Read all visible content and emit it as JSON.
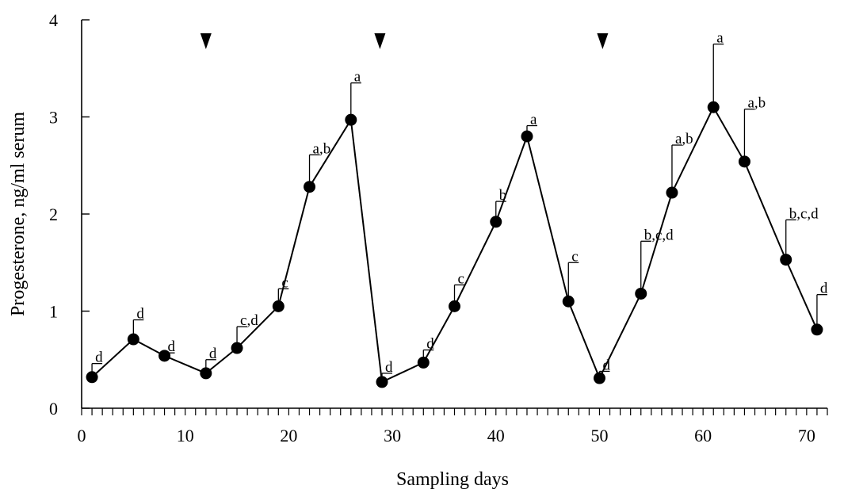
{
  "chart_data": {
    "type": "line",
    "title": "",
    "xlabel": "Sampling days",
    "ylabel": "Progesterone, ng/ml serum",
    "xlim": [
      0,
      72
    ],
    "ylim": [
      0,
      4
    ],
    "x_ticks": [
      0,
      10,
      20,
      30,
      40,
      50,
      60,
      70
    ],
    "y_ticks": [
      0,
      1,
      2,
      3,
      4
    ],
    "x_minor_step": 1,
    "grid": false,
    "legend": "none",
    "marker": "filled-circle",
    "line_color": "#000000",
    "series": [
      {
        "x": [
          1,
          5,
          8,
          12,
          15,
          19,
          22,
          26,
          29,
          33,
          36,
          40,
          43,
          47,
          50,
          54,
          57,
          61,
          64,
          68,
          71
        ],
        "values": [
          0.32,
          0.71,
          0.54,
          0.36,
          0.62,
          1.05,
          2.28,
          2.97,
          0.27,
          0.47,
          1.05,
          1.92,
          2.8,
          1.1,
          0.31,
          1.18,
          2.22,
          3.1,
          2.54,
          1.53,
          0.81
        ],
        "error_upper": [
          0.46,
          0.91,
          0.57,
          0.5,
          0.84,
          1.23,
          2.61,
          3.35,
          0.36,
          0.6,
          1.27,
          2.13,
          2.91,
          1.5,
          0.38,
          1.72,
          2.71,
          3.75,
          3.08,
          1.94,
          1.17
        ],
        "labels": [
          "d",
          "d",
          "d",
          "d",
          "c,d",
          "c",
          "a,b",
          "a",
          "d",
          "d",
          "c",
          "b",
          "a",
          "c",
          "d",
          "b,c,d",
          "a,b",
          "a",
          "a,b",
          "b,c,d",
          "d"
        ]
      }
    ],
    "arrow_markers_x": [
      12,
      28.8,
      50.3
    ]
  }
}
